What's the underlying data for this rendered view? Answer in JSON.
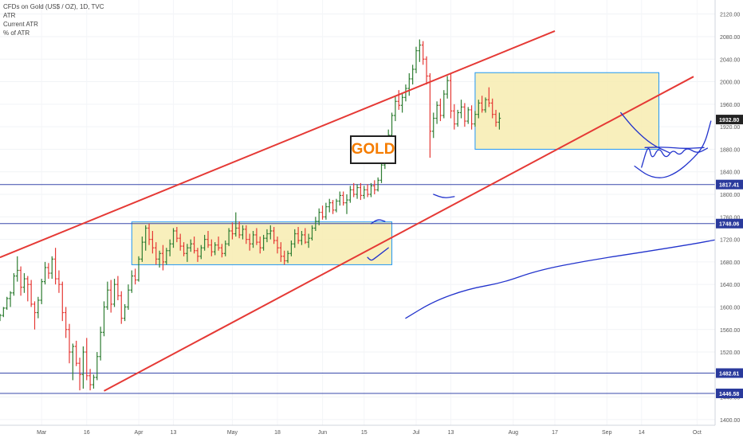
{
  "legend": {
    "title": "CFDs on Gold (US$ / OZ), 1D, TVC",
    "line1": "ATR",
    "line2": "Current ATR",
    "line3": "% of ATR"
  },
  "annotation_text": "GOLD",
  "colors": {
    "up": "#2e7d32",
    "down": "#e53935",
    "channel": "#e53935",
    "hline": "#3949ab",
    "box_fill": "#f7ecb0",
    "box_border": "#2196f3",
    "drawing": "#2233cc",
    "price_tag": "#2a3a9c",
    "last_price_tag": "#222222"
  },
  "chart_data": {
    "type": "ohlc",
    "symbol": "CFDs on Gold (US$ / OZ)",
    "timeframe": "1D",
    "y_axis": {
      "ylim": [
        1390,
        2145
      ],
      "ticks": [
        1400.0,
        1440.0,
        1480.0,
        1520.0,
        1560.0,
        1600.0,
        1640.0,
        1680.0,
        1720.0,
        1760.0,
        1800.0,
        1840.0,
        1880.0,
        1920.0,
        1960.0,
        2000.0,
        2040.0,
        2080.0,
        2120.0
      ]
    },
    "x_axis": {
      "tick_labels": [
        "Mar",
        "16",
        "Apr",
        "13",
        "May",
        "18",
        "Jun",
        "15",
        "Jul",
        "13",
        "Aug",
        "17",
        "Sep",
        "14",
        "Oct"
      ]
    },
    "price_labels": [
      1932.8,
      1817.41,
      1748.06,
      1482.61,
      1446.58
    ],
    "last_price": 1932.8,
    "horizontal_lines": [
      1817.41,
      1748.06,
      1482.61,
      1446.58
    ],
    "channel": {
      "upper": [
        {
          "bar": 0,
          "price": 1688
        },
        {
          "bar": 160,
          "price": 2090
        }
      ],
      "lower": [
        {
          "bar": 30,
          "price": 1451
        },
        {
          "bar": 200,
          "price": 2009
        }
      ]
    },
    "consolidation_zones": [
      {
        "from_bar": 38,
        "to_bar": 113,
        "high": 1751,
        "low": 1675
      },
      {
        "from_bar": 137,
        "to_bar": 190,
        "high": 2016,
        "low": 1880
      }
    ],
    "ohlc": [
      {
        "o": 1580,
        "h": 1588,
        "l": 1575,
        "c": 1585
      },
      {
        "o": 1585,
        "h": 1600,
        "l": 1582,
        "c": 1598
      },
      {
        "o": 1598,
        "h": 1618,
        "l": 1595,
        "c": 1615
      },
      {
        "o": 1615,
        "h": 1628,
        "l": 1600,
        "c": 1625
      },
      {
        "o": 1625,
        "h": 1660,
        "l": 1620,
        "c": 1655
      },
      {
        "o": 1655,
        "h": 1690,
        "l": 1645,
        "c": 1665
      },
      {
        "o": 1665,
        "h": 1672,
        "l": 1620,
        "c": 1635
      },
      {
        "o": 1635,
        "h": 1660,
        "l": 1625,
        "c": 1650
      },
      {
        "o": 1650,
        "h": 1655,
        "l": 1610,
        "c": 1640
      },
      {
        "o": 1640,
        "h": 1648,
        "l": 1600,
        "c": 1605
      },
      {
        "o": 1605,
        "h": 1610,
        "l": 1560,
        "c": 1590
      },
      {
        "o": 1590,
        "h": 1618,
        "l": 1580,
        "c": 1612
      },
      {
        "o": 1612,
        "h": 1650,
        "l": 1605,
        "c": 1645
      },
      {
        "o": 1645,
        "h": 1680,
        "l": 1640,
        "c": 1670
      },
      {
        "o": 1670,
        "h": 1678,
        "l": 1650,
        "c": 1660
      },
      {
        "o": 1660,
        "h": 1690,
        "l": 1650,
        "c": 1685
      },
      {
        "o": 1685,
        "h": 1705,
        "l": 1640,
        "c": 1650
      },
      {
        "o": 1650,
        "h": 1665,
        "l": 1625,
        "c": 1640
      },
      {
        "o": 1640,
        "h": 1645,
        "l": 1575,
        "c": 1590
      },
      {
        "o": 1590,
        "h": 1600,
        "l": 1545,
        "c": 1560
      },
      {
        "o": 1560,
        "h": 1570,
        "l": 1500,
        "c": 1520
      },
      {
        "o": 1520,
        "h": 1535,
        "l": 1470,
        "c": 1530
      },
      {
        "o": 1530,
        "h": 1540,
        "l": 1495,
        "c": 1500
      },
      {
        "o": 1500,
        "h": 1510,
        "l": 1452,
        "c": 1480
      },
      {
        "o": 1480,
        "h": 1530,
        "l": 1455,
        "c": 1520
      },
      {
        "o": 1520,
        "h": 1545,
        "l": 1470,
        "c": 1478
      },
      {
        "o": 1478,
        "h": 1490,
        "l": 1452,
        "c": 1462
      },
      {
        "o": 1462,
        "h": 1480,
        "l": 1455,
        "c": 1475
      },
      {
        "o": 1475,
        "h": 1520,
        "l": 1470,
        "c": 1512
      },
      {
        "o": 1512,
        "h": 1565,
        "l": 1505,
        "c": 1555
      },
      {
        "o": 1555,
        "h": 1610,
        "l": 1548,
        "c": 1600
      },
      {
        "o": 1600,
        "h": 1645,
        "l": 1595,
        "c": 1630
      },
      {
        "o": 1630,
        "h": 1648,
        "l": 1590,
        "c": 1605
      },
      {
        "o": 1605,
        "h": 1650,
        "l": 1600,
        "c": 1640
      },
      {
        "o": 1640,
        "h": 1655,
        "l": 1612,
        "c": 1620
      },
      {
        "o": 1620,
        "h": 1628,
        "l": 1570,
        "c": 1580
      },
      {
        "o": 1580,
        "h": 1605,
        "l": 1575,
        "c": 1600
      },
      {
        "o": 1600,
        "h": 1640,
        "l": 1595,
        "c": 1630
      },
      {
        "o": 1630,
        "h": 1665,
        "l": 1625,
        "c": 1655
      },
      {
        "o": 1655,
        "h": 1668,
        "l": 1640,
        "c": 1648
      },
      {
        "o": 1648,
        "h": 1690,
        "l": 1645,
        "c": 1685
      },
      {
        "o": 1685,
        "h": 1725,
        "l": 1680,
        "c": 1715
      },
      {
        "o": 1715,
        "h": 1745,
        "l": 1700,
        "c": 1740
      },
      {
        "o": 1740,
        "h": 1748,
        "l": 1710,
        "c": 1720
      },
      {
        "o": 1720,
        "h": 1735,
        "l": 1695,
        "c": 1705
      },
      {
        "o": 1705,
        "h": 1715,
        "l": 1675,
        "c": 1685
      },
      {
        "o": 1685,
        "h": 1700,
        "l": 1670,
        "c": 1695
      },
      {
        "o": 1695,
        "h": 1710,
        "l": 1665,
        "c": 1680
      },
      {
        "o": 1680,
        "h": 1705,
        "l": 1675,
        "c": 1700
      },
      {
        "o": 1700,
        "h": 1720,
        "l": 1690,
        "c": 1712
      },
      {
        "o": 1712,
        "h": 1740,
        "l": 1705,
        "c": 1735
      },
      {
        "o": 1735,
        "h": 1742,
        "l": 1715,
        "c": 1722
      },
      {
        "o": 1722,
        "h": 1730,
        "l": 1700,
        "c": 1708
      },
      {
        "o": 1708,
        "h": 1715,
        "l": 1690,
        "c": 1695
      },
      {
        "o": 1695,
        "h": 1712,
        "l": 1680,
        "c": 1705
      },
      {
        "o": 1705,
        "h": 1720,
        "l": 1698,
        "c": 1712
      },
      {
        "o": 1712,
        "h": 1725,
        "l": 1695,
        "c": 1700
      },
      {
        "o": 1700,
        "h": 1705,
        "l": 1680,
        "c": 1690
      },
      {
        "o": 1690,
        "h": 1710,
        "l": 1685,
        "c": 1705
      },
      {
        "o": 1705,
        "h": 1728,
        "l": 1700,
        "c": 1720
      },
      {
        "o": 1720,
        "h": 1735,
        "l": 1705,
        "c": 1710
      },
      {
        "o": 1710,
        "h": 1720,
        "l": 1690,
        "c": 1698
      },
      {
        "o": 1698,
        "h": 1715,
        "l": 1692,
        "c": 1710
      },
      {
        "o": 1710,
        "h": 1725,
        "l": 1700,
        "c": 1705
      },
      {
        "o": 1705,
        "h": 1712,
        "l": 1688,
        "c": 1695
      },
      {
        "o": 1695,
        "h": 1718,
        "l": 1690,
        "c": 1712
      },
      {
        "o": 1712,
        "h": 1740,
        "l": 1708,
        "c": 1735
      },
      {
        "o": 1735,
        "h": 1750,
        "l": 1720,
        "c": 1730
      },
      {
        "o": 1730,
        "h": 1768,
        "l": 1725,
        "c": 1740
      },
      {
        "o": 1740,
        "h": 1752,
        "l": 1722,
        "c": 1728
      },
      {
        "o": 1728,
        "h": 1745,
        "l": 1720,
        "c": 1738
      },
      {
        "o": 1738,
        "h": 1745,
        "l": 1712,
        "c": 1720
      },
      {
        "o": 1720,
        "h": 1730,
        "l": 1700,
        "c": 1712
      },
      {
        "o": 1712,
        "h": 1735,
        "l": 1705,
        "c": 1728
      },
      {
        "o": 1728,
        "h": 1740,
        "l": 1710,
        "c": 1715
      },
      {
        "o": 1715,
        "h": 1725,
        "l": 1695,
        "c": 1705
      },
      {
        "o": 1705,
        "h": 1728,
        "l": 1700,
        "c": 1722
      },
      {
        "o": 1722,
        "h": 1738,
        "l": 1715,
        "c": 1730
      },
      {
        "o": 1730,
        "h": 1745,
        "l": 1720,
        "c": 1735
      },
      {
        "o": 1735,
        "h": 1742,
        "l": 1712,
        "c": 1718
      },
      {
        "o": 1718,
        "h": 1725,
        "l": 1695,
        "c": 1705
      },
      {
        "o": 1705,
        "h": 1715,
        "l": 1680,
        "c": 1690
      },
      {
        "o": 1690,
        "h": 1700,
        "l": 1675,
        "c": 1682
      },
      {
        "o": 1682,
        "h": 1700,
        "l": 1678,
        "c": 1695
      },
      {
        "o": 1695,
        "h": 1718,
        "l": 1690,
        "c": 1712
      },
      {
        "o": 1712,
        "h": 1738,
        "l": 1705,
        "c": 1730
      },
      {
        "o": 1730,
        "h": 1742,
        "l": 1712,
        "c": 1718
      },
      {
        "o": 1718,
        "h": 1735,
        "l": 1710,
        "c": 1728
      },
      {
        "o": 1728,
        "h": 1740,
        "l": 1712,
        "c": 1715
      },
      {
        "o": 1715,
        "h": 1730,
        "l": 1705,
        "c": 1722
      },
      {
        "o": 1722,
        "h": 1745,
        "l": 1718,
        "c": 1740
      },
      {
        "o": 1740,
        "h": 1760,
        "l": 1735,
        "c": 1752
      },
      {
        "o": 1752,
        "h": 1775,
        "l": 1745,
        "c": 1768
      },
      {
        "o": 1768,
        "h": 1780,
        "l": 1755,
        "c": 1760
      },
      {
        "o": 1760,
        "h": 1785,
        "l": 1755,
        "c": 1778
      },
      {
        "o": 1778,
        "h": 1792,
        "l": 1768,
        "c": 1785
      },
      {
        "o": 1785,
        "h": 1790,
        "l": 1765,
        "c": 1772
      },
      {
        "o": 1772,
        "h": 1792,
        "l": 1768,
        "c": 1788
      },
      {
        "o": 1788,
        "h": 1805,
        "l": 1780,
        "c": 1798
      },
      {
        "o": 1798,
        "h": 1805,
        "l": 1780,
        "c": 1785
      },
      {
        "o": 1785,
        "h": 1800,
        "l": 1765,
        "c": 1790
      },
      {
        "o": 1790,
        "h": 1815,
        "l": 1785,
        "c": 1808
      },
      {
        "o": 1808,
        "h": 1820,
        "l": 1795,
        "c": 1800
      },
      {
        "o": 1800,
        "h": 1818,
        "l": 1792,
        "c": 1812
      },
      {
        "o": 1812,
        "h": 1820,
        "l": 1790,
        "c": 1798
      },
      {
        "o": 1798,
        "h": 1815,
        "l": 1792,
        "c": 1808
      },
      {
        "o": 1808,
        "h": 1818,
        "l": 1795,
        "c": 1800
      },
      {
        "o": 1800,
        "h": 1820,
        "l": 1795,
        "c": 1815
      },
      {
        "o": 1815,
        "h": 1825,
        "l": 1800,
        "c": 1808
      },
      {
        "o": 1808,
        "h": 1830,
        "l": 1805,
        "c": 1825
      },
      {
        "o": 1825,
        "h": 1858,
        "l": 1820,
        "c": 1852
      },
      {
        "o": 1852,
        "h": 1880,
        "l": 1845,
        "c": 1875
      },
      {
        "o": 1875,
        "h": 1915,
        "l": 1870,
        "c": 1905
      },
      {
        "o": 1905,
        "h": 1945,
        "l": 1895,
        "c": 1940
      },
      {
        "o": 1940,
        "h": 1975,
        "l": 1930,
        "c": 1965
      },
      {
        "o": 1965,
        "h": 1985,
        "l": 1950,
        "c": 1958
      },
      {
        "o": 1958,
        "h": 1980,
        "l": 1945,
        "c": 1972
      },
      {
        "o": 1972,
        "h": 1995,
        "l": 1965,
        "c": 1988
      },
      {
        "o": 1988,
        "h": 2015,
        "l": 1975,
        "c": 2005
      },
      {
        "o": 2005,
        "h": 2030,
        "l": 1995,
        "c": 2022
      },
      {
        "o": 2022,
        "h": 2062,
        "l": 2015,
        "c": 2055
      },
      {
        "o": 2055,
        "h": 2075,
        "l": 2035,
        "c": 2065
      },
      {
        "o": 2065,
        "h": 2072,
        "l": 2030,
        "c": 2040
      },
      {
        "o": 2040,
        "h": 2045,
        "l": 1995,
        "c": 2010
      },
      {
        "o": 2010,
        "h": 2015,
        "l": 1865,
        "c": 1912
      },
      {
        "o": 1912,
        "h": 1945,
        "l": 1900,
        "c": 1935
      },
      {
        "o": 1935,
        "h": 1965,
        "l": 1925,
        "c": 1958
      },
      {
        "o": 1958,
        "h": 1970,
        "l": 1930,
        "c": 1940
      },
      {
        "o": 1940,
        "h": 1985,
        "l": 1935,
        "c": 1978
      },
      {
        "o": 1978,
        "h": 2010,
        "l": 1970,
        "c": 2002
      },
      {
        "o": 2002,
        "h": 2015,
        "l": 1935,
        "c": 1948
      },
      {
        "o": 1948,
        "h": 1960,
        "l": 1915,
        "c": 1925
      },
      {
        "o": 1925,
        "h": 1950,
        "l": 1920,
        "c": 1945
      },
      {
        "o": 1945,
        "h": 1968,
        "l": 1935,
        "c": 1955
      },
      {
        "o": 1955,
        "h": 1962,
        "l": 1920,
        "c": 1930
      },
      {
        "o": 1930,
        "h": 1955,
        "l": 1925,
        "c": 1950
      },
      {
        "o": 1950,
        "h": 1958,
        "l": 1915,
        "c": 1925
      },
      {
        "o": 1925,
        "h": 1948,
        "l": 1920,
        "c": 1942
      },
      {
        "o": 1942,
        "h": 1968,
        "l": 1935,
        "c": 1962
      },
      {
        "o": 1962,
        "h": 1975,
        "l": 1945,
        "c": 1950
      },
      {
        "o": 1950,
        "h": 1972,
        "l": 1945,
        "c": 1968
      },
      {
        "o": 1968,
        "h": 1990,
        "l": 1955,
        "c": 1962
      },
      {
        "o": 1962,
        "h": 1970,
        "l": 1935,
        "c": 1942
      },
      {
        "o": 1942,
        "h": 1950,
        "l": 1920,
        "c": 1928
      },
      {
        "o": 1928,
        "h": 1945,
        "l": 1915,
        "c": 1935
      }
    ],
    "drawings": [
      {
        "kind": "curve",
        "points": [
          {
            "bar": 125,
            "price": 1800
          },
          {
            "bar": 128,
            "price": 1793
          },
          {
            "bar": 131,
            "price": 1796
          }
        ]
      },
      {
        "kind": "curve",
        "points": [
          {
            "bar": 107,
            "price": 1748
          },
          {
            "bar": 109,
            "price": 1756
          },
          {
            "bar": 111,
            "price": 1752
          }
        ]
      },
      {
        "kind": "curve",
        "points": [
          {
            "bar": 106,
            "price": 1688
          },
          {
            "bar": 107,
            "price": 1682
          },
          {
            "bar": 108,
            "price": 1686
          },
          {
            "bar": 112,
            "price": 1705
          }
        ]
      },
      {
        "kind": "curve",
        "points": [
          {
            "bar": 117,
            "price": 1580
          },
          {
            "bar": 125,
            "price": 1610
          },
          {
            "bar": 135,
            "price": 1632
          },
          {
            "bar": 145,
            "price": 1643
          },
          {
            "bar": 155,
            "price": 1665
          },
          {
            "bar": 170,
            "price": 1683
          },
          {
            "bar": 185,
            "price": 1697
          },
          {
            "bar": 200,
            "price": 1712
          },
          {
            "bar": 207,
            "price": 1720
          }
        ]
      },
      {
        "kind": "curve",
        "points": [
          {
            "bar": 179,
            "price": 1945
          },
          {
            "bar": 183,
            "price": 1915
          },
          {
            "bar": 188,
            "price": 1888
          },
          {
            "bar": 193,
            "price": 1874
          }
        ]
      },
      {
        "kind": "curve",
        "points": [
          {
            "bar": 183,
            "price": 1850
          },
          {
            "bar": 187,
            "price": 1832
          },
          {
            "bar": 191,
            "price": 1828
          },
          {
            "bar": 195,
            "price": 1838
          },
          {
            "bar": 199,
            "price": 1858
          },
          {
            "bar": 203,
            "price": 1885
          },
          {
            "bar": 205,
            "price": 1930
          }
        ]
      },
      {
        "kind": "curve",
        "points": [
          {
            "bar": 185,
            "price": 1848
          },
          {
            "bar": 187,
            "price": 1890
          },
          {
            "bar": 188,
            "price": 1860
          },
          {
            "bar": 190,
            "price": 1885
          },
          {
            "bar": 192,
            "price": 1862
          },
          {
            "bar": 194,
            "price": 1880
          },
          {
            "bar": 196,
            "price": 1868
          },
          {
            "bar": 198,
            "price": 1884
          },
          {
            "bar": 201,
            "price": 1872
          },
          {
            "bar": 204,
            "price": 1882
          }
        ]
      },
      {
        "kind": "curve",
        "points": [
          {
            "bar": 186,
            "price": 1883
          },
          {
            "bar": 192,
            "price": 1884
          },
          {
            "bar": 197,
            "price": 1881
          },
          {
            "bar": 203,
            "price": 1883
          }
        ]
      }
    ]
  }
}
